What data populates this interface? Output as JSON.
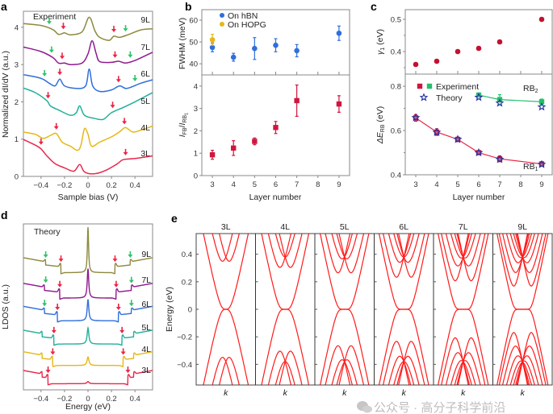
{
  "panel_letters": {
    "a": "a",
    "b": "b",
    "c": "c",
    "d": "d",
    "e": "e"
  },
  "watermark": "公众号 · 高分子科学前沿",
  "colors": {
    "3L": "#e8274b",
    "4L": "#e6b817",
    "5L": "#22b09a",
    "6L": "#2f6fdc",
    "7L": "#8e1a8e",
    "9L": "#8c8a3e",
    "arrow_red": "#ec2344",
    "arrow_green": "#2ec46b",
    "bands": "#ff1a1a",
    "hBN": "#2f6fdc",
    "HOPG": "#e6b817",
    "experiment_rb1": "#d0163e",
    "experiment_rb2": "#22c06a",
    "theory_star": "#1f2f9e"
  },
  "chart_data": [
    {
      "panel": "a",
      "type": "line",
      "annotation": "Experiment",
      "xlabel": "Sample bias (V)",
      "ylabel": "Normalized dI/dV (a.u.)",
      "xlim": [
        -0.55,
        0.55
      ],
      "ylim": [
        0,
        4.43
      ],
      "xticks": [
        -0.4,
        -0.2,
        0,
        0.2,
        0.4
      ],
      "xtick_labels": [
        "−0.4",
        "−0.2",
        "0",
        "0.2",
        "0.4"
      ],
      "yticks": [
        0,
        1,
        2,
        3,
        4
      ],
      "ytick_labels": [
        "0",
        "1",
        "2",
        "3",
        "4"
      ],
      "series": [
        {
          "name": "9L",
          "points": [
            [
              -0.55,
              4.1
            ],
            [
              -0.4,
              4.05
            ],
            [
              -0.3,
              3.94
            ],
            [
              -0.25,
              3.81
            ],
            [
              -0.2,
              3.85
            ],
            [
              -0.15,
              3.8
            ],
            [
              -0.05,
              3.88
            ],
            [
              0.01,
              4.27
            ],
            [
              0.06,
              3.9
            ],
            [
              0.1,
              3.73
            ],
            [
              0.18,
              3.65
            ],
            [
              0.22,
              3.76
            ],
            [
              0.27,
              3.73
            ],
            [
              0.35,
              3.81
            ],
            [
              0.45,
              3.93
            ],
            [
              0.55,
              3.96
            ]
          ],
          "red_arrows": [
            -0.21,
            0.22
          ],
          "green_arrows": [
            -0.33,
            0.32
          ]
        },
        {
          "name": "7L",
          "points": [
            [
              -0.55,
              3.47
            ],
            [
              -0.4,
              3.35
            ],
            [
              -0.3,
              3.19
            ],
            [
              -0.25,
              3.04
            ],
            [
              -0.2,
              3.04
            ],
            [
              -0.15,
              3.0
            ],
            [
              -0.05,
              3.04
            ],
            [
              0.0,
              3.29
            ],
            [
              0.035,
              3.64
            ],
            [
              0.07,
              3.29
            ],
            [
              0.1,
              3.08
            ],
            [
              0.2,
              3.06
            ],
            [
              0.26,
              3.09
            ],
            [
              0.32,
              3.04
            ],
            [
              0.4,
              3.11
            ],
            [
              0.55,
              3.33
            ]
          ],
          "red_arrows": [
            -0.22,
            0.23
          ],
          "green_arrows": [
            -0.31,
            0.36
          ]
        },
        {
          "name": "6L",
          "points": [
            [
              -0.55,
              2.73
            ],
            [
              -0.4,
              2.63
            ],
            [
              -0.33,
              2.5
            ],
            [
              -0.28,
              2.43
            ],
            [
              -0.24,
              2.61
            ],
            [
              -0.2,
              2.43
            ],
            [
              -0.1,
              2.36
            ],
            [
              -0.02,
              2.43
            ],
            [
              0.01,
              2.88
            ],
            [
              0.04,
              2.43
            ],
            [
              0.1,
              2.28
            ],
            [
              0.2,
              2.32
            ],
            [
              0.27,
              2.43
            ],
            [
              0.33,
              2.36
            ],
            [
              0.45,
              2.5
            ],
            [
              0.55,
              2.59
            ]
          ],
          "red_arrows": [
            -0.24,
            0.26
          ],
          "green_arrows": [
            -0.37,
            0.4
          ]
        },
        {
          "name": "5L",
          "points": [
            [
              -0.55,
              2.37
            ],
            [
              -0.45,
              2.25
            ],
            [
              -0.35,
              2.03
            ],
            [
              -0.32,
              1.89
            ],
            [
              -0.25,
              1.78
            ],
            [
              -0.15,
              1.64
            ],
            [
              -0.1,
              1.71
            ],
            [
              -0.07,
              1.89
            ],
            [
              -0.03,
              1.64
            ],
            [
              0.05,
              1.56
            ],
            [
              0.13,
              1.53
            ],
            [
              0.2,
              1.71
            ],
            [
              0.3,
              1.85
            ],
            [
              0.4,
              2.0
            ],
            [
              0.55,
              2.25
            ]
          ],
          "red_arrows": [
            -0.34,
            0.21
          ],
          "green_arrows": []
        },
        {
          "name": "4L",
          "points": [
            [
              -0.55,
              1.19
            ],
            [
              -0.45,
              1.13
            ],
            [
              -0.38,
              1.02
            ],
            [
              -0.32,
              1.1
            ],
            [
              -0.27,
              1.15
            ],
            [
              -0.22,
              0.92
            ],
            [
              -0.15,
              0.81
            ],
            [
              -0.09,
              0.7
            ],
            [
              -0.06,
              0.84
            ],
            [
              -0.03,
              1.28
            ],
            [
              0.0,
              1.13
            ],
            [
              0.03,
              0.81
            ],
            [
              0.1,
              0.92
            ],
            [
              0.2,
              1.06
            ],
            [
              0.27,
              1.2
            ],
            [
              0.32,
              1.31
            ],
            [
              0.38,
              1.19
            ],
            [
              0.45,
              1.24
            ],
            [
              0.55,
              1.35
            ]
          ],
          "red_arrows": [
            -0.27,
            0.31
          ],
          "green_arrows": []
        },
        {
          "name": "3L",
          "points": [
            [
              -0.55,
              0.99
            ],
            [
              -0.45,
              0.84
            ],
            [
              -0.4,
              0.74
            ],
            [
              -0.35,
              0.55
            ],
            [
              -0.28,
              0.34
            ],
            [
              -0.2,
              0.23
            ],
            [
              -0.12,
              0.14
            ],
            [
              -0.07,
              0.32
            ],
            [
              -0.03,
              0.12
            ],
            [
              0.05,
              0.07
            ],
            [
              0.15,
              0.16
            ],
            [
              0.25,
              0.34
            ],
            [
              0.3,
              0.45
            ],
            [
              0.4,
              0.48
            ],
            [
              0.55,
              0.55
            ]
          ],
          "red_arrows": [
            -0.4,
            0.32
          ],
          "green_arrows": []
        }
      ]
    },
    {
      "panel": "b-top",
      "type": "scatter",
      "ylabel": "FWHM (meV)",
      "xlim": [
        2.5,
        9.5
      ],
      "ylim": [
        34.9,
        64.8
      ],
      "yticks": [
        40,
        50,
        60
      ],
      "ytick_labels": [
        "40",
        "50",
        "60"
      ],
      "legend": "top-left",
      "series": [
        {
          "name": "On hBN",
          "x": [
            3,
            4,
            5,
            6,
            7,
            9
          ],
          "y": [
            47.5,
            43,
            47,
            48.5,
            46,
            54
          ],
          "err": [
            2,
            1.8,
            5,
            3,
            2.8,
            3.3
          ]
        },
        {
          "name": "On HOPG",
          "x": [
            3
          ],
          "y": [
            51
          ],
          "err": [
            2.5
          ]
        }
      ]
    },
    {
      "panel": "b-bottom",
      "type": "scatter",
      "ylabel": {
        "i1": "I",
        "s1": "FB",
        "slash": "/",
        "i2": "I",
        "s2": "RB",
        "s2n": "1"
      },
      "xlabel": "Layer number",
      "xlim": [
        2.5,
        9.5
      ],
      "ylim": [
        0,
        4.5
      ],
      "xticks": [
        3,
        4,
        5,
        6,
        7,
        8,
        9
      ],
      "xtick_labels": [
        "3",
        "4",
        "5",
        "6",
        "7",
        "8",
        "9"
      ],
      "yticks": [
        0,
        1,
        2,
        3,
        4
      ],
      "ytick_labels": [
        "0",
        "1",
        "2",
        "3",
        "4"
      ],
      "series": [
        {
          "x": [
            3,
            4,
            5,
            6,
            7,
            9
          ],
          "y": [
            0.93,
            1.23,
            1.53,
            2.15,
            3.35,
            3.2
          ],
          "err": [
            0.2,
            0.33,
            0.15,
            0.27,
            0.7,
            0.37
          ]
        }
      ]
    },
    {
      "panel": "c-top",
      "type": "scatter",
      "ylabel": {
        "sym": "γ",
        "sub": "1",
        "unit": " (eV)"
      },
      "xlim": [
        2.5,
        9.5
      ],
      "ylim": [
        0.33,
        0.53
      ],
      "yticks": [
        0.4,
        0.5
      ],
      "ytick_labels": [
        "0.4",
        "0.5"
      ],
      "series": [
        {
          "x": [
            3,
            4,
            5,
            6,
            7,
            9
          ],
          "y": [
            0.36,
            0.37,
            0.4,
            0.41,
            0.43,
            0.5
          ]
        }
      ]
    },
    {
      "panel": "c-bottom",
      "type": "line",
      "ylabel": {
        "sym": "ΔE",
        "sub": "RB",
        "unit": " (eV)"
      },
      "xlabel": "Layer number",
      "xlim": [
        2.5,
        9.5
      ],
      "ylim": [
        0.4,
        0.855
      ],
      "xticks": [
        3,
        4,
        5,
        6,
        7,
        8,
        9
      ],
      "xtick_labels": [
        "3",
        "4",
        "5",
        "6",
        "7",
        "8",
        "9"
      ],
      "yticks": [
        0.4,
        0.6,
        0.8
      ],
      "ytick_labels": [
        "0.4",
        "0.6",
        "0.8"
      ],
      "legend": {
        "experiment": "Experiment",
        "theory": "Theory",
        "placement": "top-left"
      },
      "annotations": {
        "rb2": "RB",
        "rb2_sub": "2",
        "rb1": "RB",
        "rb1_sub": "1"
      },
      "series": [
        {
          "label": "RB1 experiment",
          "x": [
            3,
            4,
            5,
            6,
            7,
            9
          ],
          "y": [
            0.657,
            0.593,
            0.56,
            0.5,
            0.472,
            0.449
          ],
          "err": [
            0.015,
            0.015,
            0.01,
            0.008,
            0.013,
            0.01
          ]
        },
        {
          "label": "RB1 theory",
          "x": [
            3,
            4,
            5,
            6,
            7,
            9
          ],
          "y": [
            0.658,
            0.592,
            0.56,
            0.5,
            0.47,
            0.447
          ]
        },
        {
          "label": "RB2 experiment",
          "x": [
            6,
            7,
            9
          ],
          "y": [
            0.76,
            0.74,
            0.73
          ],
          "err": [
            0.01,
            0.022,
            0.012
          ]
        },
        {
          "label": "RB2 theory",
          "x": [
            6,
            7,
            9
          ],
          "y": [
            0.75,
            0.724,
            0.707
          ]
        }
      ]
    },
    {
      "panel": "d",
      "type": "line",
      "annotation": "Theory",
      "xlabel": "Energy (eV)",
      "ylabel": "LDOS (a.u.)",
      "xlim": [
        -0.55,
        0.55
      ],
      "ylim": [
        0,
        6.2
      ],
      "xticks": [
        -0.4,
        -0.2,
        0,
        0.2,
        0.4
      ],
      "xtick_labels": [
        "−0.4",
        "−0.2",
        "0",
        "0.2",
        "0.4"
      ],
      "series": [
        {
          "name": "9L",
          "baseline": 4.38,
          "zero_peak": 1.7,
          "red_arrows": [
            -0.23,
            0.23
          ],
          "green_arrows": [
            -0.36,
            0.36
          ]
        },
        {
          "name": "7L",
          "baseline": 3.43,
          "zero_peak": 1.1,
          "red_arrows": [
            -0.24,
            0.24
          ],
          "green_arrows": [
            -0.36,
            0.37
          ]
        },
        {
          "name": "6L",
          "baseline": 2.58,
          "zero_peak": 0.8,
          "red_arrows": [
            -0.26,
            0.26
          ],
          "green_arrows": [
            -0.37,
            0.37
          ]
        },
        {
          "name": "5L",
          "baseline": 1.71,
          "zero_peak": 0.6,
          "red_arrows": [
            -0.29,
            0.29
          ],
          "green_arrows": []
        },
        {
          "name": "4L",
          "baseline": 0.91,
          "zero_peak": 0.32,
          "red_arrows": [
            -0.3,
            0.3
          ],
          "green_arrows": []
        },
        {
          "name": "3L",
          "baseline": 0.23,
          "zero_peak": 0.08,
          "red_arrows": [
            -0.34,
            0.34
          ],
          "green_arrows": []
        }
      ]
    },
    {
      "panel": "e",
      "type": "line",
      "ylabel": "Energy (eV)",
      "xlabel": "k",
      "ylim": [
        -0.55,
        0.55
      ],
      "yticks": [
        -0.4,
        -0.2,
        0,
        0.2,
        0.4
      ],
      "ytick_labels": [
        "−0.4",
        "−0.2",
        "0",
        "0.2",
        "0.4"
      ],
      "subplots": [
        {
          "title": "3L",
          "layers": 3
        },
        {
          "title": "4L",
          "layers": 4
        },
        {
          "title": "5L",
          "layers": 5
        },
        {
          "title": "6L",
          "layers": 6
        },
        {
          "title": "7L",
          "layers": 7
        },
        {
          "title": "9L",
          "layers": 9
        }
      ]
    }
  ]
}
